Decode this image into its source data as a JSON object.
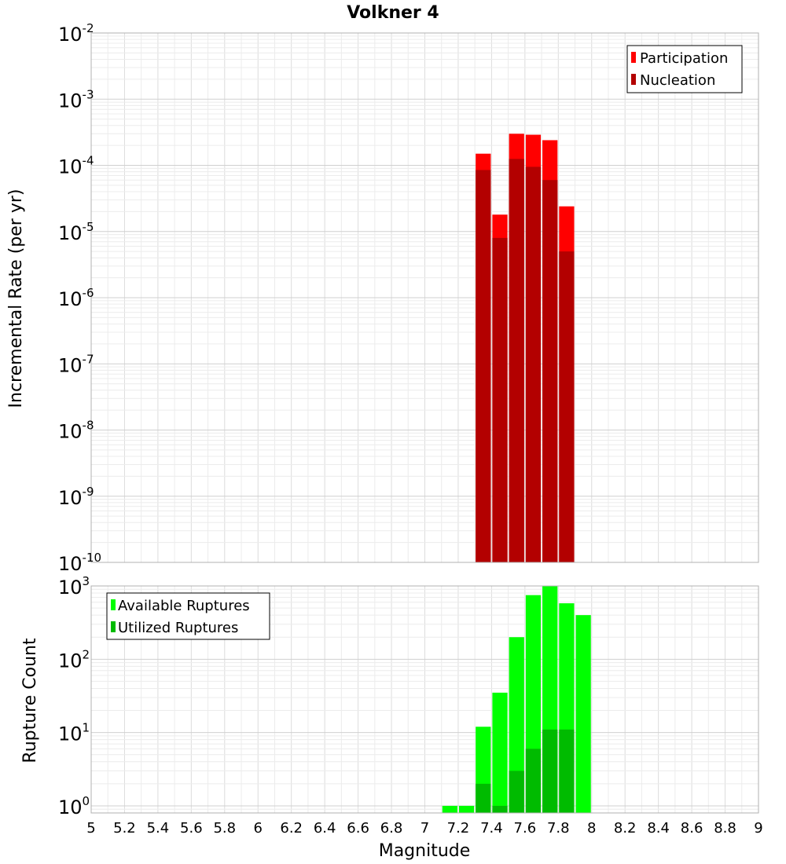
{
  "title": "Volkner 4",
  "xlabel": "Magnitude",
  "x_ticks": [
    "5",
    "5.2",
    "5.4",
    "5.6",
    "5.8",
    "6",
    "6.2",
    "6.4",
    "6.6",
    "6.8",
    "7",
    "7.2",
    "7.4",
    "7.6",
    "7.8",
    "8",
    "8.2",
    "8.4",
    "8.6",
    "8.8",
    "9"
  ],
  "chart_data": [
    {
      "type": "bar",
      "ylabel": "Incremental Rate (per yr)",
      "y_scale": "log",
      "xlim": [
        5,
        9
      ],
      "ylim": [
        1e-10,
        0.01
      ],
      "y_tick_exponents": [
        "-10",
        "-9",
        "-8",
        "-7",
        "-6",
        "-5",
        "-4",
        "-3",
        "-2"
      ],
      "bin_width": 0.1,
      "grid": true,
      "legend_position": "top-right",
      "x": [
        7.35,
        7.45,
        7.55,
        7.65,
        7.75,
        7.85
      ],
      "series": [
        {
          "name": "Participation",
          "color": "#ff0000",
          "values": [
            0.00015,
            1.8e-05,
            0.0003,
            0.00029,
            0.00024,
            2.4e-05
          ]
        },
        {
          "name": "Nucleation",
          "color": "#b30000",
          "values": [
            8.5e-05,
            8e-06,
            0.000125,
            9.5e-05,
            6e-05,
            5e-06
          ]
        }
      ]
    },
    {
      "type": "bar",
      "ylabel": "Rupture Count",
      "y_scale": "log",
      "xlim": [
        5,
        9
      ],
      "ylim": [
        0.8,
        1000
      ],
      "y_tick_exponents": [
        "0",
        "1",
        "2",
        "3"
      ],
      "bin_width": 0.1,
      "grid": true,
      "legend_position": "top-left",
      "x": [
        7.15,
        7.25,
        7.35,
        7.45,
        7.55,
        7.65,
        7.75,
        7.85,
        7.95
      ],
      "series": [
        {
          "name": "Available Ruptures",
          "color": "#00ff00",
          "values": [
            1,
            1,
            12,
            35,
            200,
            750,
            1000,
            580,
            400
          ]
        },
        {
          "name": "Utilized Ruptures",
          "color": "#00bb00",
          "values": [
            0,
            0,
            2,
            1,
            3,
            6,
            11,
            11,
            0
          ]
        }
      ]
    }
  ]
}
